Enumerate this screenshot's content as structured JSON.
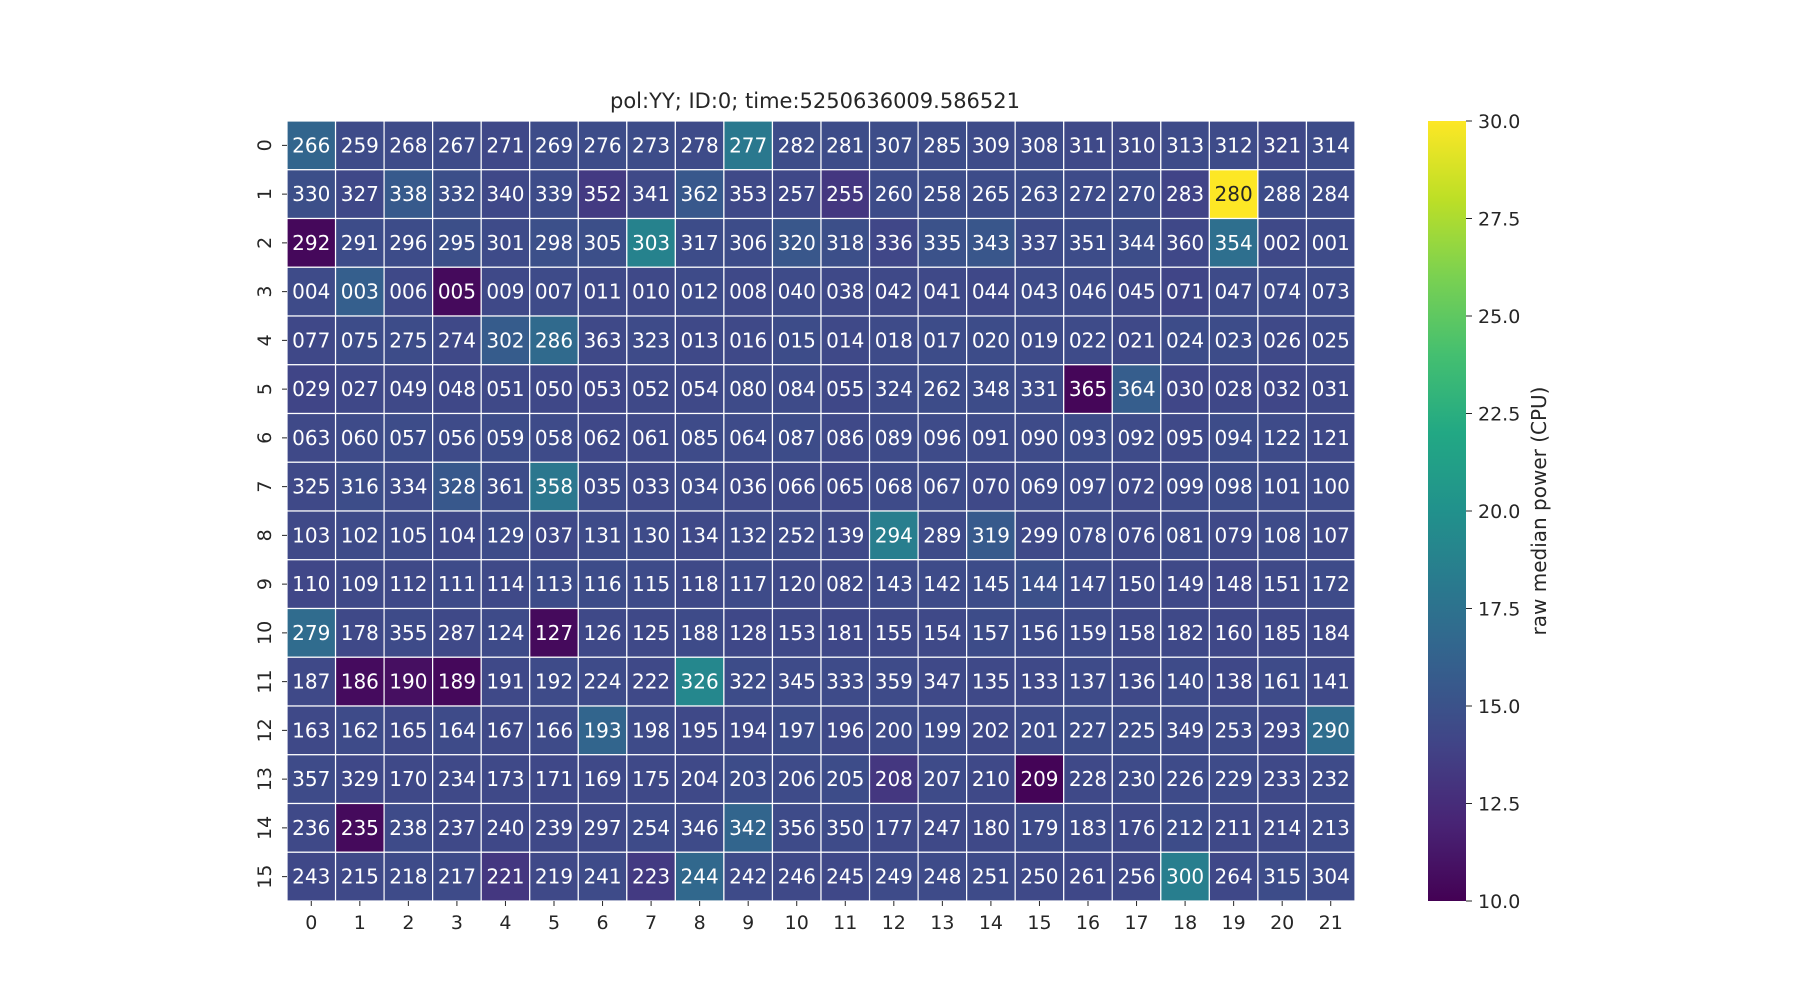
{
  "chart_data": {
    "type": "heatmap",
    "title": "pol:YY; ID:0; time:5250636009.586521",
    "x_categories": [
      "0",
      "1",
      "2",
      "3",
      "4",
      "5",
      "6",
      "7",
      "8",
      "9",
      "10",
      "11",
      "12",
      "13",
      "14",
      "15",
      "16",
      "17",
      "18",
      "19",
      "20",
      "21"
    ],
    "y_categories": [
      "0",
      "1",
      "2",
      "3",
      "4",
      "5",
      "6",
      "7",
      "8",
      "9",
      "10",
      "11",
      "12",
      "13",
      "14",
      "15"
    ],
    "annotations": [
      [
        "266",
        "259",
        "268",
        "267",
        "271",
        "269",
        "276",
        "273",
        "278",
        "277",
        "282",
        "281",
        "307",
        "285",
        "309",
        "308",
        "311",
        "310",
        "313",
        "312",
        "321",
        "314"
      ],
      [
        "330",
        "327",
        "338",
        "332",
        "340",
        "339",
        "352",
        "341",
        "362",
        "353",
        "257",
        "255",
        "260",
        "258",
        "265",
        "263",
        "272",
        "270",
        "283",
        "280",
        "288",
        "284"
      ],
      [
        "292",
        "291",
        "296",
        "295",
        "301",
        "298",
        "305",
        "303",
        "317",
        "306",
        "320",
        "318",
        "336",
        "335",
        "343",
        "337",
        "351",
        "344",
        "360",
        "354",
        "002",
        "001"
      ],
      [
        "004",
        "003",
        "006",
        "005",
        "009",
        "007",
        "011",
        "010",
        "012",
        "008",
        "040",
        "038",
        "042",
        "041",
        "044",
        "043",
        "046",
        "045",
        "071",
        "047",
        "074",
        "073"
      ],
      [
        "077",
        "075",
        "275",
        "274",
        "302",
        "286",
        "363",
        "323",
        "013",
        "016",
        "015",
        "014",
        "018",
        "017",
        "020",
        "019",
        "022",
        "021",
        "024",
        "023",
        "026",
        "025"
      ],
      [
        "029",
        "027",
        "049",
        "048",
        "051",
        "050",
        "053",
        "052",
        "054",
        "080",
        "084",
        "055",
        "324",
        "262",
        "348",
        "331",
        "365",
        "364",
        "030",
        "028",
        "032",
        "031"
      ],
      [
        "063",
        "060",
        "057",
        "056",
        "059",
        "058",
        "062",
        "061",
        "085",
        "064",
        "087",
        "086",
        "089",
        "096",
        "091",
        "090",
        "093",
        "092",
        "095",
        "094",
        "122",
        "121"
      ],
      [
        "325",
        "316",
        "334",
        "328",
        "361",
        "358",
        "035",
        "033",
        "034",
        "036",
        "066",
        "065",
        "068",
        "067",
        "070",
        "069",
        "097",
        "072",
        "099",
        "098",
        "101",
        "100"
      ],
      [
        "103",
        "102",
        "105",
        "104",
        "129",
        "037",
        "131",
        "130",
        "134",
        "132",
        "252",
        "139",
        "294",
        "289",
        "319",
        "299",
        "078",
        "076",
        "081",
        "079",
        "108",
        "107"
      ],
      [
        "110",
        "109",
        "112",
        "111",
        "114",
        "113",
        "116",
        "115",
        "118",
        "117",
        "120",
        "082",
        "143",
        "142",
        "145",
        "144",
        "147",
        "150",
        "149",
        "148",
        "151",
        "172"
      ],
      [
        "279",
        "178",
        "355",
        "287",
        "124",
        "127",
        "126",
        "125",
        "188",
        "128",
        "153",
        "181",
        "155",
        "154",
        "157",
        "156",
        "159",
        "158",
        "182",
        "160",
        "185",
        "184"
      ],
      [
        "187",
        "186",
        "190",
        "189",
        "191",
        "192",
        "224",
        "222",
        "326",
        "322",
        "345",
        "333",
        "359",
        "347",
        "135",
        "133",
        "137",
        "136",
        "140",
        "138",
        "161",
        "141"
      ],
      [
        "163",
        "162",
        "165",
        "164",
        "167",
        "166",
        "193",
        "198",
        "195",
        "194",
        "197",
        "196",
        "200",
        "199",
        "202",
        "201",
        "227",
        "225",
        "349",
        "253",
        "293",
        "290"
      ],
      [
        "357",
        "329",
        "170",
        "234",
        "173",
        "171",
        "169",
        "175",
        "204",
        "203",
        "206",
        "205",
        "208",
        "207",
        "210",
        "209",
        "228",
        "230",
        "226",
        "229",
        "233",
        "232"
      ],
      [
        "236",
        "235",
        "238",
        "237",
        "240",
        "239",
        "297",
        "254",
        "346",
        "342",
        "356",
        "350",
        "177",
        "247",
        "180",
        "179",
        "183",
        "176",
        "212",
        "211",
        "214",
        "213"
      ],
      [
        "243",
        "215",
        "218",
        "217",
        "221",
        "219",
        "241",
        "223",
        "244",
        "242",
        "246",
        "245",
        "249",
        "248",
        "251",
        "250",
        "261",
        "256",
        "300",
        "264",
        "315",
        "304"
      ]
    ],
    "values": [
      [
        16.5,
        14.5,
        14.5,
        14.5,
        14.3,
        14.6,
        14.6,
        14.6,
        14.5,
        18.0,
        14.7,
        14.6,
        14.7,
        14.6,
        14.5,
        14.5,
        14.4,
        14.4,
        14.5,
        14.5,
        14.3,
        14.6
      ],
      [
        14.8,
        14.3,
        15.6,
        14.8,
        14.3,
        14.6,
        13.4,
        14.4,
        15.5,
        14.4,
        14.3,
        13.2,
        14.6,
        14.7,
        14.6,
        14.7,
        14.5,
        14.6,
        14.0,
        30.0,
        14.6,
        14.5
      ],
      [
        10.4,
        14.6,
        14.6,
        14.8,
        14.5,
        14.9,
        14.8,
        18.8,
        14.6,
        14.6,
        15.4,
        14.8,
        14.2,
        15.0,
        15.3,
        14.5,
        14.6,
        14.7,
        14.3,
        17.3,
        14.4,
        14.5
      ],
      [
        14.5,
        16.0,
        14.4,
        10.5,
        14.4,
        14.5,
        14.4,
        14.4,
        14.5,
        14.4,
        14.5,
        14.4,
        14.4,
        14.4,
        14.3,
        14.5,
        14.5,
        14.4,
        14.1,
        14.5,
        14.5,
        14.5
      ],
      [
        14.3,
        14.6,
        14.6,
        14.4,
        15.8,
        16.9,
        14.4,
        14.5,
        14.4,
        14.4,
        14.6,
        14.4,
        14.5,
        14.6,
        14.6,
        14.5,
        14.5,
        14.4,
        14.6,
        14.6,
        14.4,
        14.5
      ],
      [
        14.1,
        14.3,
        14.4,
        14.3,
        14.4,
        14.3,
        14.2,
        14.4,
        14.4,
        14.5,
        14.5,
        14.3,
        14.5,
        14.6,
        14.6,
        14.5,
        10.3,
        15.9,
        14.2,
        14.3,
        14.2,
        14.4
      ],
      [
        14.4,
        14.5,
        14.6,
        14.5,
        14.6,
        14.5,
        14.3,
        14.4,
        14.5,
        14.5,
        14.6,
        14.4,
        14.5,
        14.5,
        14.5,
        14.5,
        14.6,
        14.5,
        14.4,
        14.6,
        14.5,
        14.4
      ],
      [
        14.4,
        14.7,
        14.5,
        15.5,
        14.6,
        17.9,
        14.5,
        14.4,
        14.5,
        14.4,
        14.4,
        14.3,
        14.5,
        14.5,
        14.4,
        14.5,
        14.5,
        14.4,
        14.5,
        14.6,
        14.5,
        14.5
      ],
      [
        14.4,
        14.5,
        14.5,
        14.4,
        14.6,
        14.3,
        14.5,
        14.5,
        14.4,
        14.5,
        14.5,
        14.4,
        18.5,
        14.5,
        15.6,
        14.4,
        14.5,
        14.4,
        14.5,
        14.4,
        14.5,
        14.4
      ],
      [
        14.2,
        14.4,
        14.4,
        14.5,
        14.4,
        14.6,
        14.6,
        14.5,
        14.4,
        14.5,
        14.4,
        14.4,
        14.5,
        14.5,
        14.6,
        14.9,
        14.5,
        14.4,
        14.4,
        14.2,
        14.4,
        14.5
      ],
      [
        17.0,
        14.4,
        14.5,
        14.4,
        14.5,
        10.5,
        14.4,
        14.4,
        14.5,
        14.3,
        14.4,
        14.3,
        14.4,
        14.4,
        14.6,
        14.5,
        14.5,
        14.4,
        14.4,
        14.3,
        14.3,
        14.4
      ],
      [
        14.4,
        10.6,
        10.8,
        10.4,
        14.4,
        14.5,
        14.5,
        14.4,
        19.2,
        14.6,
        14.5,
        14.5,
        14.5,
        14.4,
        14.4,
        14.4,
        14.5,
        14.4,
        14.5,
        14.3,
        14.5,
        14.4
      ],
      [
        14.4,
        14.5,
        14.4,
        14.5,
        14.4,
        14.5,
        16.5,
        14.5,
        14.4,
        14.4,
        14.6,
        14.4,
        14.5,
        14.5,
        14.4,
        14.5,
        14.6,
        14.6,
        14.5,
        14.5,
        14.3,
        17.1
      ],
      [
        14.5,
        14.3,
        14.4,
        14.4,
        14.4,
        14.3,
        14.4,
        14.4,
        14.4,
        14.6,
        14.5,
        14.6,
        13.2,
        14.5,
        14.4,
        10.2,
        14.4,
        14.5,
        14.5,
        14.5,
        14.4,
        14.5
      ],
      [
        14.4,
        10.5,
        14.5,
        14.4,
        14.3,
        14.4,
        14.4,
        14.5,
        14.5,
        16.5,
        14.5,
        14.5,
        14.4,
        14.4,
        14.4,
        14.5,
        14.5,
        14.4,
        14.6,
        14.4,
        14.4,
        14.5
      ],
      [
        14.3,
        14.4,
        14.5,
        14.5,
        13.2,
        14.4,
        14.5,
        13.4,
        16.7,
        14.5,
        14.4,
        14.3,
        14.5,
        14.5,
        14.5,
        14.4,
        14.3,
        14.4,
        18.5,
        14.3,
        14.6,
        14.5
      ]
    ],
    "colorbar": {
      "label": "raw median power (CPU)",
      "min": 10.0,
      "max": 30.0,
      "ticks": [
        "10.0",
        "12.5",
        "15.0",
        "17.5",
        "20.0",
        "22.5",
        "25.0",
        "27.5",
        "30.0"
      ],
      "colormap": "viridis"
    }
  }
}
